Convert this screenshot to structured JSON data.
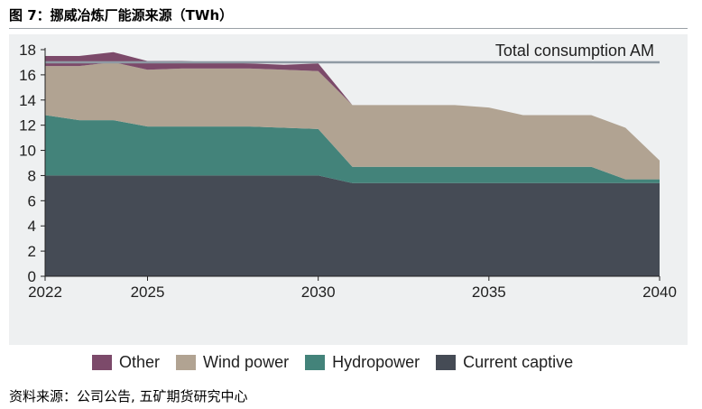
{
  "figure_title": "图 7：挪威冶炼厂能源来源（TWh）",
  "source_note": "资料来源：公司公告, 五矿期货研究中心",
  "chart_data": {
    "type": "area",
    "stacked": true,
    "title": "",
    "xlabel": "",
    "ylabel": "",
    "x": [
      2022,
      2023,
      2024,
      2025,
      2026,
      2027,
      2028,
      2029,
      2030,
      2031,
      2032,
      2033,
      2034,
      2035,
      2036,
      2037,
      2038,
      2039,
      2040
    ],
    "xlim": [
      2022,
      2040
    ],
    "ylim": [
      0,
      18
    ],
    "x_ticks": [
      "2022",
      "2025",
      "2030",
      "2035",
      "2040"
    ],
    "x_tick_values": [
      2022,
      2025,
      2030,
      2035,
      2040
    ],
    "y_ticks": [
      "0",
      "2",
      "4",
      "6",
      "8",
      "10",
      "12",
      "14",
      "16",
      "18"
    ],
    "y_tick_values": [
      0,
      2,
      4,
      6,
      8,
      10,
      12,
      14,
      16,
      18
    ],
    "grid": false,
    "legend_position": "bottom",
    "series": [
      {
        "name": "Current captive",
        "color": "#454b55",
        "values": [
          8.0,
          8.0,
          8.0,
          8.0,
          8.0,
          8.0,
          8.0,
          8.0,
          8.0,
          7.4,
          7.4,
          7.4,
          7.4,
          7.4,
          7.4,
          7.4,
          7.4,
          7.4,
          7.4
        ]
      },
      {
        "name": "Hydropower",
        "color": "#43837a",
        "values": [
          4.8,
          4.4,
          4.4,
          3.9,
          3.9,
          3.9,
          3.9,
          3.8,
          3.7,
          1.3,
          1.3,
          1.3,
          1.3,
          1.3,
          1.3,
          1.3,
          1.3,
          0.3,
          0.3
        ]
      },
      {
        "name": "Wind power",
        "color": "#b1a392",
        "values": [
          3.9,
          4.3,
          4.6,
          4.5,
          4.6,
          4.6,
          4.6,
          4.6,
          4.6,
          4.9,
          4.9,
          4.9,
          4.9,
          4.7,
          4.1,
          4.1,
          4.1,
          4.1,
          1.5
        ]
      },
      {
        "name": "Other",
        "color": "#7c4a6a",
        "values": [
          0.8,
          0.8,
          0.8,
          0.7,
          0.6,
          0.5,
          0.4,
          0.4,
          0.6,
          0,
          0,
          0,
          0,
          0,
          0,
          0,
          0,
          0,
          0
        ]
      }
    ],
    "legend_order": [
      "Other",
      "Wind power",
      "Hydropower",
      "Current captive"
    ],
    "reference_line": {
      "label": "Total consumption AM",
      "value": 17.0,
      "color": "#8f9aa4"
    }
  }
}
